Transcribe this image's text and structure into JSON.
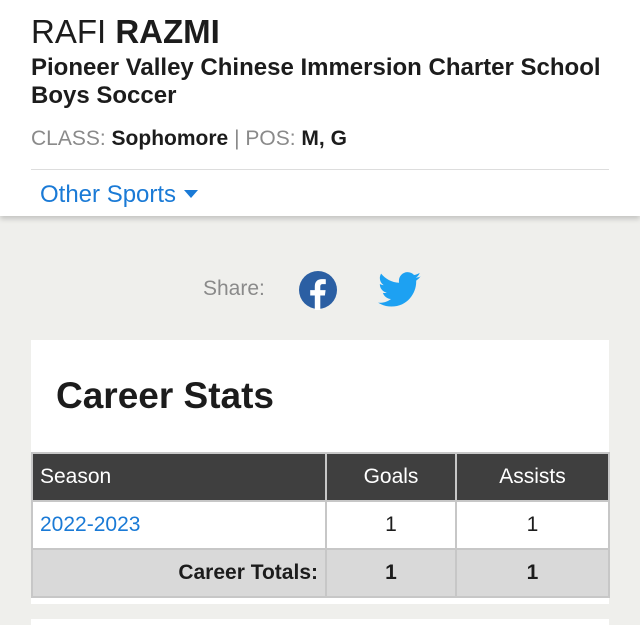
{
  "player": {
    "first_name": "RAFI",
    "last_name": "RAZMI",
    "school": "Pioneer Valley Chinese Immersion Charter School Boys Soccer",
    "class_label": "CLASS:",
    "class_value": "Sophomore",
    "separator": "|",
    "pos_label": "POS:",
    "pos_value": "M, G"
  },
  "other_sports": {
    "label": "Other Sports",
    "icon": "chevron-down-icon"
  },
  "share": {
    "label": "Share:",
    "icons": [
      "facebook-icon",
      "twitter-icon"
    ],
    "colors": {
      "facebook": "#3b5998",
      "twitter": "#1da1f2"
    }
  },
  "career_stats": {
    "title": "Career Stats",
    "columns": [
      "Season",
      "Goals",
      "Assists"
    ],
    "rows": [
      {
        "season": "2022-2023",
        "goals": "1",
        "assists": "1"
      }
    ],
    "totals": {
      "label": "Career Totals:",
      "goals": "1",
      "assists": "1"
    }
  },
  "colors": {
    "link": "#1a7ad6",
    "table_header_bg": "#3f3f3f",
    "totals_bg": "#d9d9d9",
    "page_bg": "#efefec"
  }
}
